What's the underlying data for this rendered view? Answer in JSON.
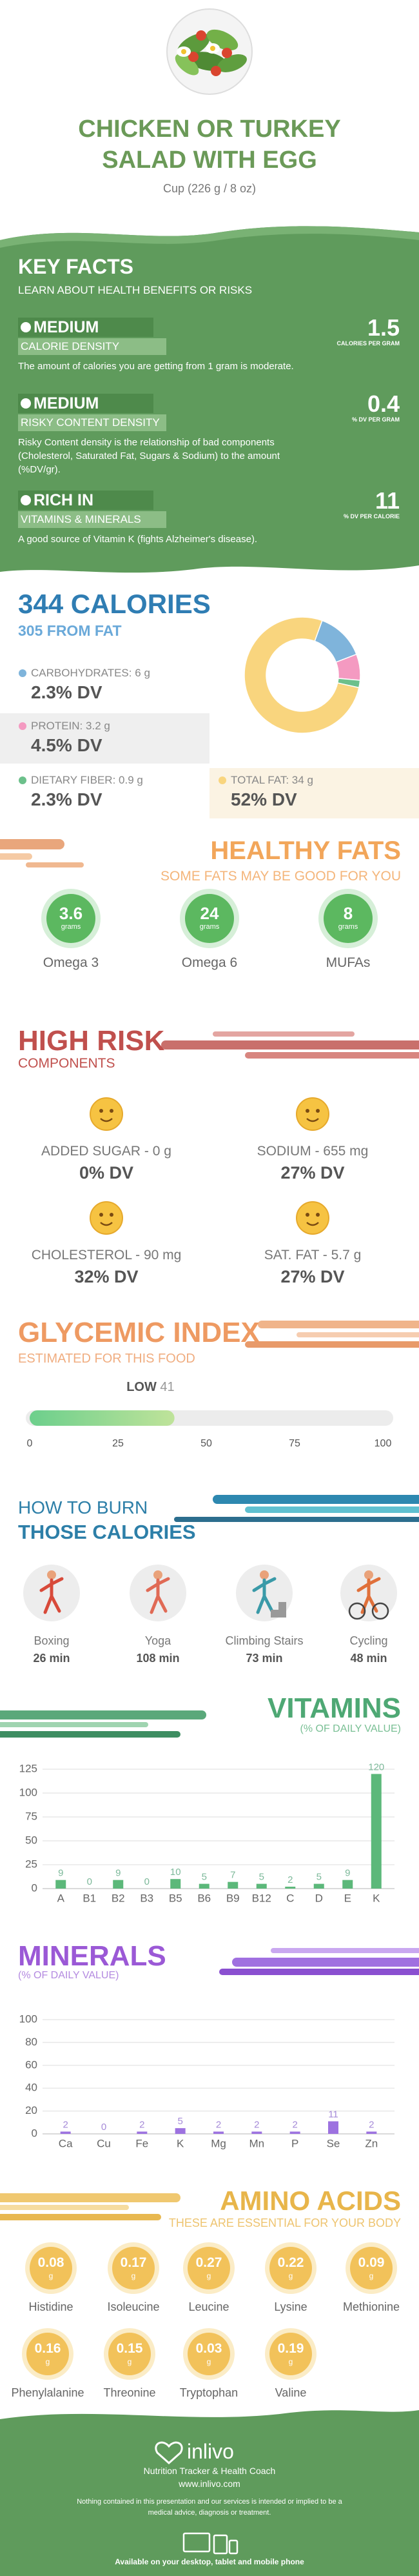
{
  "header": {
    "title": "CHICKEN OR TURKEY SALAD WITH EGG",
    "serving": "Cup (226 g / 8 oz)"
  },
  "key_facts": {
    "title": "KEY FACTS",
    "subtitle": "LEARN ABOUT HEALTH BENEFITS OR RISKS",
    "items": [
      {
        "level": "MEDIUM",
        "label": "CALORIE DENSITY",
        "description": "The amount of calories you are getting from 1 gram is moderate.",
        "value": 1.5,
        "unit": "CALORIES PER GRAM"
      },
      {
        "level": "MEDIUM",
        "label": "RISKY CONTENT DENSITY",
        "description": "Risky Content density is the relationship of bad components (Cholesterol, Saturated Fat, Sugars & Sodium) to the amount (%DV/gr).",
        "value": 0.4,
        "unit": "% DV PER GRAM"
      },
      {
        "level": "RICH IN",
        "label": "VITAMINS & MINERALS",
        "description": "A good source of Vitamin K (fights Alzheimer's disease).",
        "value": 11,
        "unit": "% DV PER CALORIE"
      }
    ]
  },
  "calories": {
    "type": "pie",
    "title": "344 CALORIES",
    "subtitle": "305 FROM FAT",
    "nutrients": [
      {
        "name": "CARBOHYDRATES:",
        "amount": 6,
        "unit": "g",
        "dv": "2.3% DV",
        "color": "#7fb4db"
      },
      {
        "name": "PROTEIN:",
        "amount": 3.2,
        "unit": "g",
        "dv": "4.5% DV",
        "color": "#f49ac1"
      },
      {
        "name": "DIETARY FIBER:",
        "amount": 0.9,
        "unit": "g",
        "dv": "2.3% DV",
        "color": "#6cc08b"
      },
      {
        "name": "TOTAL FAT:",
        "amount": 34,
        "unit": "g",
        "dv": "52% DV",
        "color": "#f9d57e"
      }
    ]
  },
  "healthy_fats": {
    "title": "HEALTHY FATS",
    "subtitle": "SOME FATS MAY BE GOOD FOR YOU",
    "items": [
      {
        "value": 3.6,
        "unit": "grams",
        "name": "Omega 3"
      },
      {
        "value": 24,
        "unit": "grams",
        "name": "Omega 6"
      },
      {
        "value": 8,
        "unit": "grams",
        "name": "MUFAs"
      }
    ]
  },
  "high_risk": {
    "title": "HIGH RISK",
    "subtitle": "COMPONENTS",
    "items": [
      {
        "name": "ADDED SUGAR - 0 g",
        "dv": "0% DV"
      },
      {
        "name": "SODIUM - 655 mg",
        "dv": "27% DV"
      },
      {
        "name": "CHOLESTEROL - 90 mg",
        "dv": "32% DV"
      },
      {
        "name": "SAT. FAT - 5.7 g",
        "dv": "27% DV"
      }
    ]
  },
  "glycemic_index": {
    "type": "bar",
    "title": "GLYCEMIC INDEX",
    "subtitle": "ESTIMATED FOR THIS FOOD",
    "level": "LOW",
    "value": 41,
    "xlim": [
      0,
      100
    ],
    "xticks": [
      0,
      25,
      50,
      75,
      100
    ]
  },
  "burn": {
    "title_line1": "HOW TO BURN",
    "title_line2": "THOSE CALORIES",
    "items": [
      {
        "activity": "Boxing",
        "time": "26 min"
      },
      {
        "activity": "Yoga",
        "time": "108 min"
      },
      {
        "activity": "Climbing Stairs",
        "time": "73 min"
      },
      {
        "activity": "Cycling",
        "time": "48 min"
      }
    ]
  },
  "vitamins": {
    "type": "bar",
    "title": "VITAMINS",
    "subtitle": "(% OF DAILY VALUE)",
    "categories": [
      "A",
      "B1",
      "B2",
      "B3",
      "B5",
      "B6",
      "B9",
      "B12",
      "C",
      "D",
      "E",
      "K"
    ],
    "values": [
      9,
      0,
      9,
      0,
      10,
      5,
      7,
      5,
      2,
      5,
      9,
      120
    ],
    "color": "#5cb87a",
    "ylim": [
      0,
      125
    ],
    "yticks": [
      0,
      25,
      50,
      75,
      100,
      125
    ],
    "grid": true
  },
  "minerals": {
    "type": "bar",
    "title": "MINERALS",
    "subtitle": "(% OF DAILY VALUE)",
    "categories": [
      "Ca",
      "Cu",
      "Fe",
      "K",
      "Mg",
      "Mn",
      "P",
      "Se",
      "Zn"
    ],
    "values": [
      2,
      0,
      2,
      5,
      2,
      2,
      2,
      11,
      2
    ],
    "color": "#9d72e0",
    "ylim": [
      0,
      100
    ],
    "yticks": [
      0,
      20,
      40,
      60,
      80,
      100
    ],
    "grid": true
  },
  "amino_acids": {
    "title": "AMINO ACIDS",
    "subtitle": "THESE ARE ESSENTIAL FOR YOUR BODY",
    "items": [
      {
        "name": "Histidine",
        "value": 0.08,
        "unit": "g"
      },
      {
        "name": "Isoleucine",
        "value": 0.17,
        "unit": "g"
      },
      {
        "name": "Leucine",
        "value": 0.27,
        "unit": "g"
      },
      {
        "name": "Lysine",
        "value": 0.22,
        "unit": "g"
      },
      {
        "name": "Methionine",
        "value": 0.09,
        "unit": "g"
      },
      {
        "name": "Phenylalanine",
        "value": 0.16,
        "unit": "g"
      },
      {
        "name": "Threonine",
        "value": 0.15,
        "unit": "g"
      },
      {
        "name": "Tryptophan",
        "value": 0.03,
        "unit": "g"
      },
      {
        "name": "Valine",
        "value": 0.19,
        "unit": "g"
      }
    ]
  },
  "footer": {
    "brand": "inlivo",
    "tagline": "Nutrition Tracker & Health Coach",
    "url": "www.inlivo.com",
    "disclaimer": "Nothing contained in this presentation and our services is intended or implied to be a medical advice, diagnosis or treatment.",
    "available": "Available on your desktop, tablet and mobile phone"
  }
}
